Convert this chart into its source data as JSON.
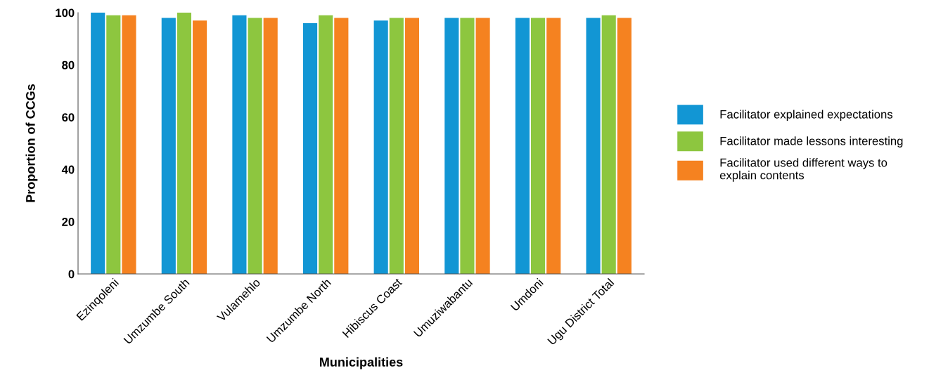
{
  "chart_data": {
    "type": "bar",
    "xlabel": "Municipalities",
    "ylabel": "Proportion of CCGs",
    "categories": [
      "Ezinqoleni",
      "Umzumbe South",
      "Vulamehlo",
      "Umzumbe North",
      "Hibiscus Coast",
      "Umuziwabantu",
      "Umdoni",
      "Ugu District Total"
    ],
    "series": [
      {
        "name": "Facilitator explained expectations",
        "color": "#1296d4",
        "values": [
          100,
          98,
          99,
          96,
          97,
          98,
          98,
          98
        ]
      },
      {
        "name": "Facilitator made lessons interesting",
        "color": "#8dc63f",
        "values": [
          99,
          100,
          98,
          99,
          98,
          98,
          98,
          99
        ]
      },
      {
        "name": "Facilitator used different ways to explain contents",
        "color": "#f58220",
        "values": [
          99,
          97,
          98,
          98,
          98,
          98,
          98,
          98
        ]
      }
    ],
    "ylim": [
      0,
      100
    ],
    "yticks": [
      0,
      20,
      40,
      60,
      80,
      100
    ],
    "grid": false,
    "legend": "right"
  }
}
